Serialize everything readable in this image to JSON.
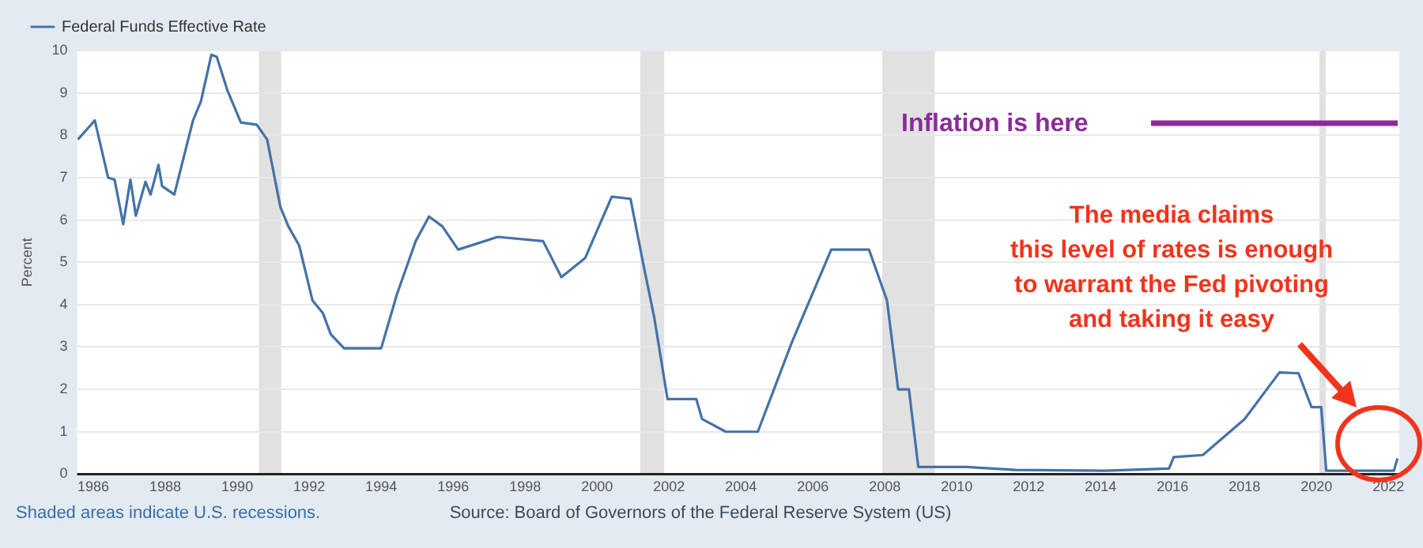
{
  "chart_data": {
    "type": "line",
    "ylabel": "Percent",
    "x": [
      1985.57,
      1986.04,
      1986.41,
      1986.59,
      1986.83,
      1987.03,
      1987.18,
      1987.45,
      1987.59,
      1987.81,
      1987.91,
      1988.25,
      1988.77,
      1988.99,
      1989.28,
      1989.43,
      1989.73,
      1990.1,
      1990.54,
      1990.83,
      1991.2,
      1991.42,
      1991.72,
      1992.09,
      1992.38,
      1992.6,
      1992.97,
      1994.0,
      1994.44,
      1994.96,
      1995.33,
      1995.7,
      1996.14,
      1997.24,
      1998.5,
      1999.01,
      1999.67,
      2000.41,
      2000.93,
      2001.3,
      2001.59,
      2001.96,
      2002.76,
      2002.92,
      2003.58,
      2004.47,
      2005.41,
      2006.51,
      2007.56,
      2008.06,
      2008.37,
      2008.67,
      2008.93,
      2010.27,
      2011.6,
      2014.12,
      2015.9,
      2016.03,
      2016.84,
      2018.0,
      2018.97,
      2019.5,
      2019.86,
      2020.13,
      2020.27,
      2022.15,
      2022.25
    ],
    "series": [
      {
        "name": "Federal Funds Effective Rate",
        "color": "#4572a7",
        "values": [
          7.9,
          8.35,
          7.0,
          6.95,
          5.9,
          6.95,
          6.1,
          6.9,
          6.6,
          7.3,
          6.8,
          6.6,
          8.35,
          8.8,
          9.9,
          9.85,
          9.05,
          8.3,
          8.25,
          7.9,
          6.3,
          5.85,
          5.4,
          4.1,
          3.8,
          3.3,
          2.97,
          2.97,
          4.25,
          5.5,
          6.08,
          5.85,
          5.3,
          5.6,
          5.5,
          4.65,
          5.1,
          6.55,
          6.5,
          4.9,
          3.7,
          1.77,
          1.77,
          1.3,
          1.0,
          1.0,
          3.1,
          5.3,
          5.3,
          4.1,
          2.0,
          2.0,
          0.17,
          0.17,
          0.1,
          0.08,
          0.13,
          0.4,
          0.45,
          1.3,
          2.4,
          2.38,
          1.58,
          1.58,
          0.08,
          0.08,
          0.37
        ]
      }
    ],
    "xlim": [
      1985.55,
      2022.3
    ],
    "xticks": [
      1986,
      1988,
      1990,
      1992,
      1994,
      1996,
      1998,
      2000,
      2002,
      2004,
      2006,
      2008,
      2010,
      2012,
      2014,
      2016,
      2018,
      2020,
      2022
    ],
    "ylim": [
      0,
      10
    ],
    "yticks": [
      0,
      1,
      2,
      3,
      4,
      5,
      6,
      7,
      8,
      9,
      10
    ],
    "grid": "y",
    "legend": "top left",
    "marker": "none",
    "line_style": "solid",
    "bands": [
      {
        "axis": "x",
        "from": 1990.6,
        "to": 1991.22,
        "color": "#e1e1e1"
      },
      {
        "axis": "x",
        "from": 2001.2,
        "to": 2001.87,
        "color": "#e1e1e1"
      },
      {
        "axis": "x",
        "from": 2007.93,
        "to": 2009.39,
        "color": "#e1e1e1"
      },
      {
        "axis": "x",
        "from": 2020.08,
        "to": 2020.26,
        "color": "#e1e1e1"
      }
    ],
    "annotations": [
      "Inflation is here",
      "The media claims\nthis level of rates is enough\nto warrant the Fed pivoting\nand taking it easy",
      "Shaded areas indicate U.S. recessions.",
      "Source: Board of Governors of the Federal Reserve System (US)"
    ]
  }
}
